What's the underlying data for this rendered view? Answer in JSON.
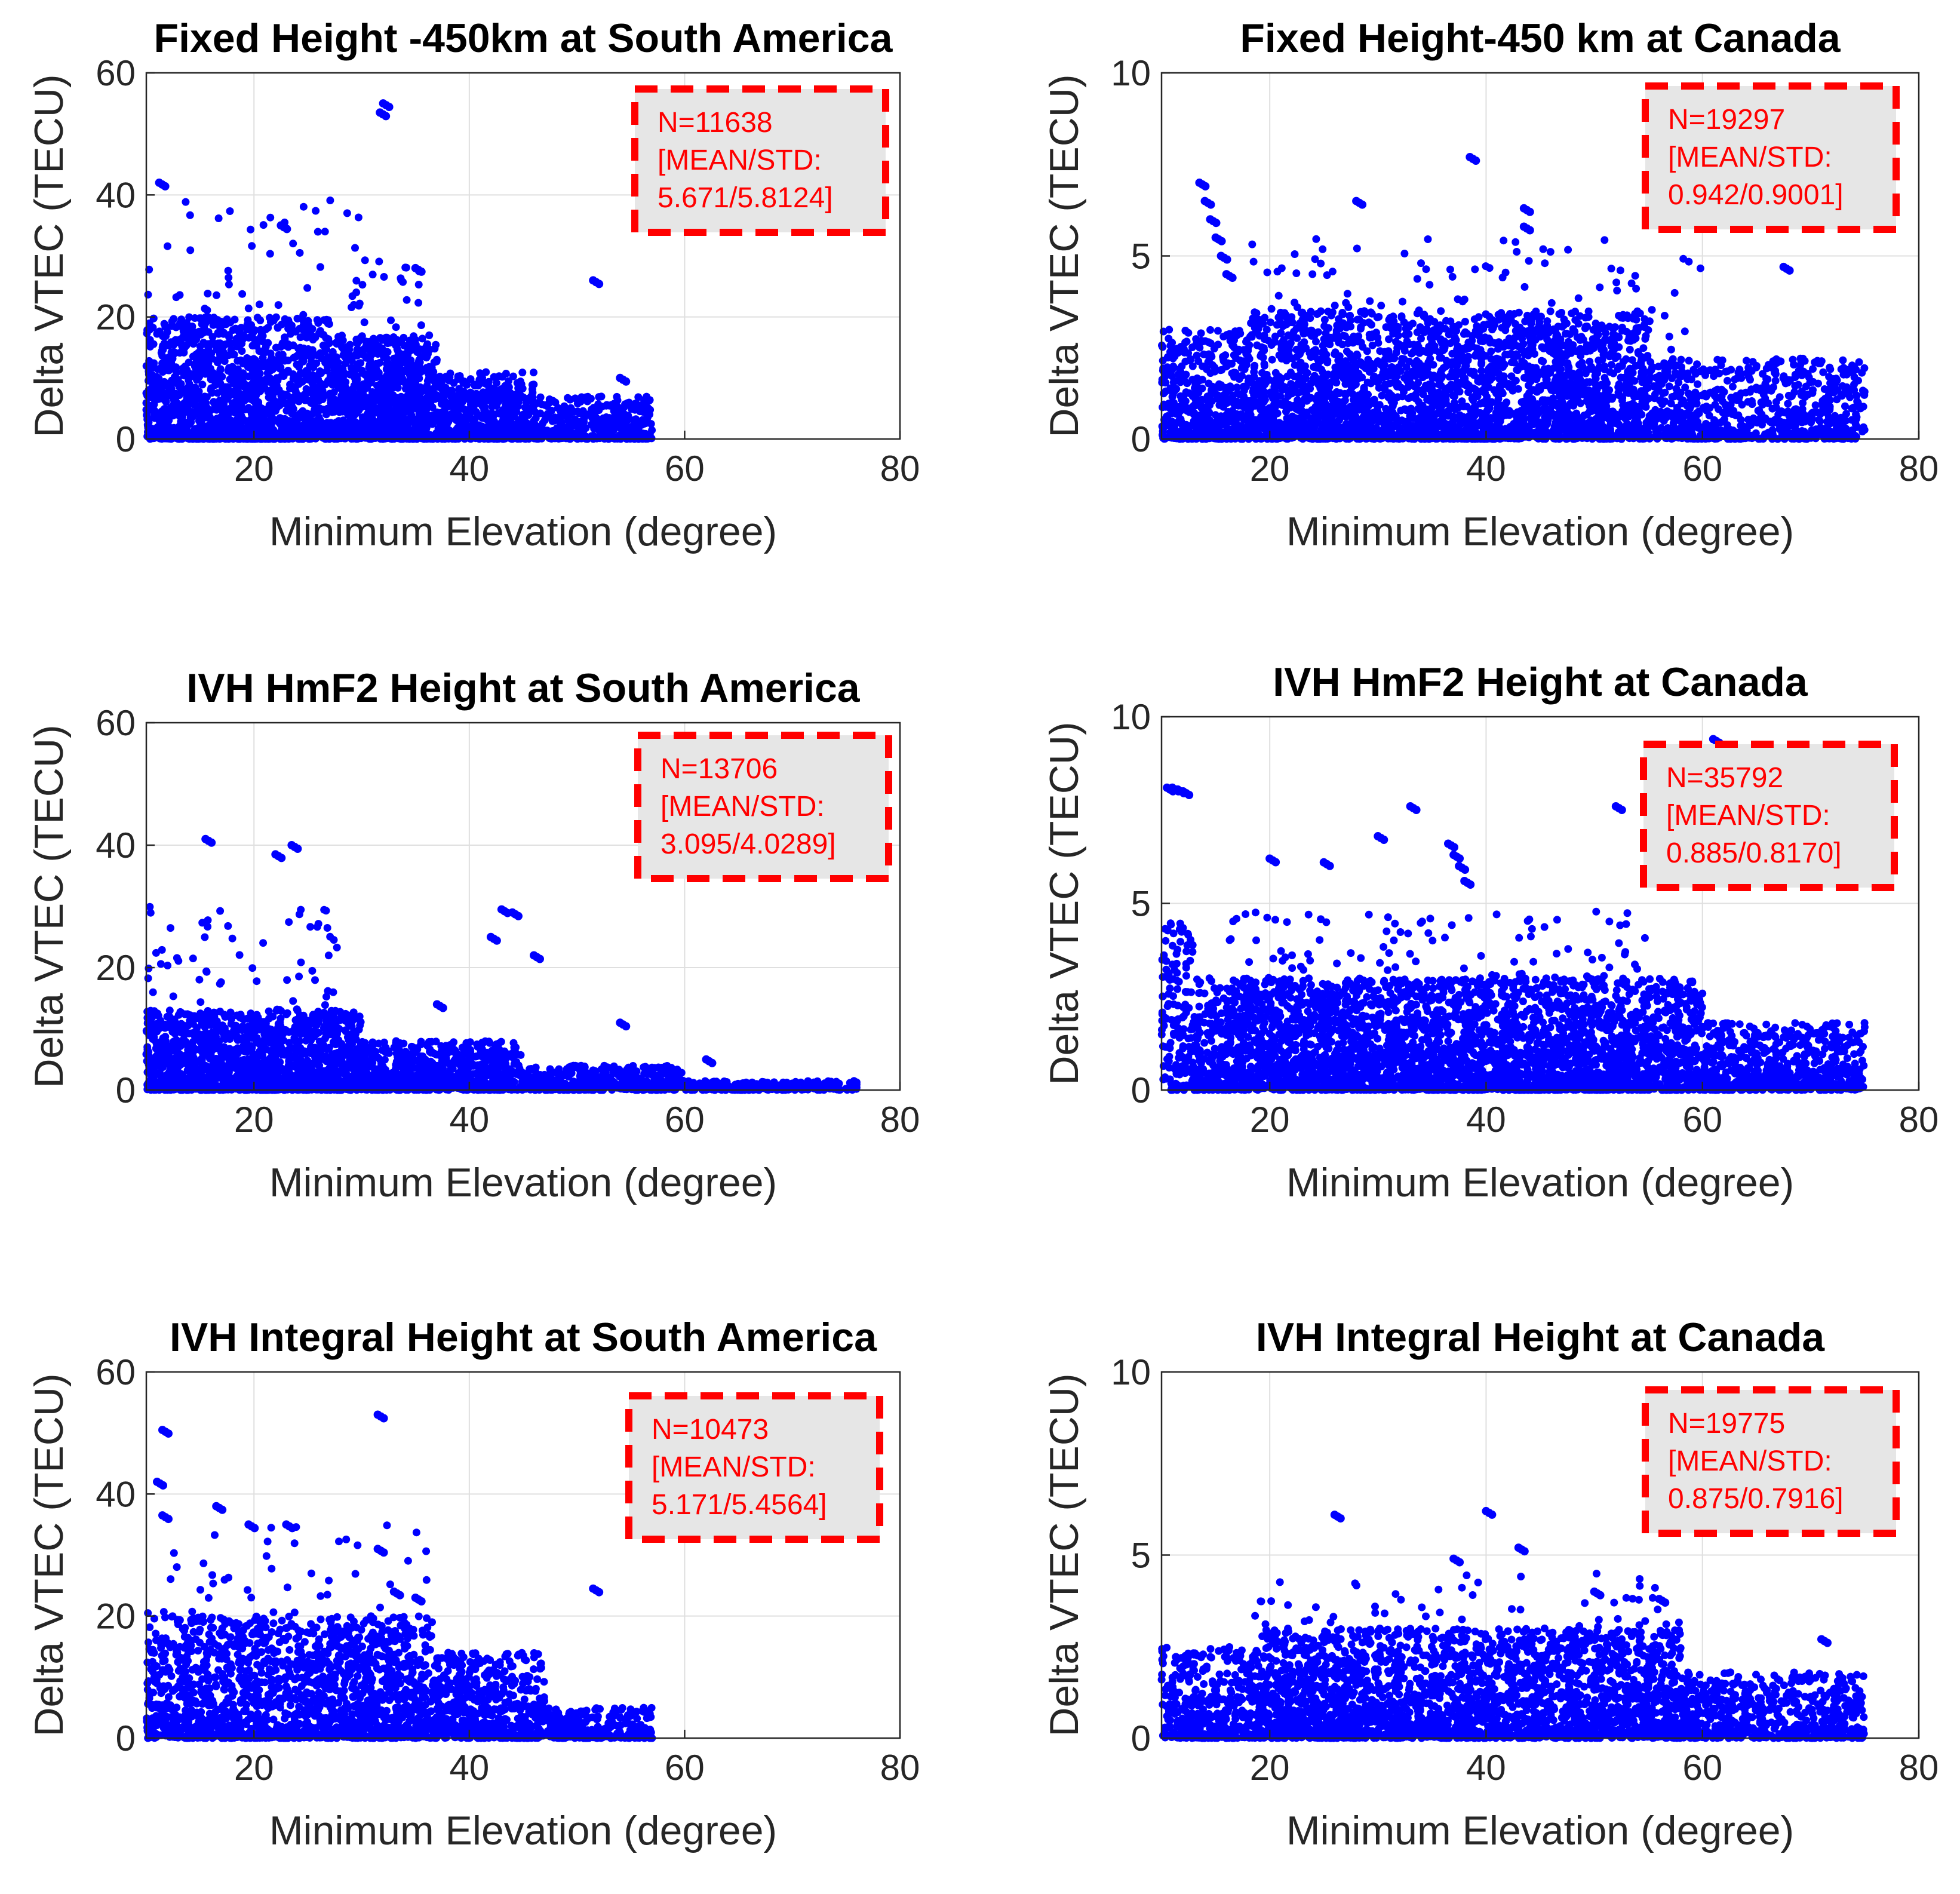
{
  "colors": {
    "marker": "#0000ff",
    "stats_border": "#ff0000",
    "stats_text": "#ff0000",
    "stats_fill": "#e6e6e6",
    "grid": "#dfdfdf",
    "axes": "#262626"
  },
  "chart_data": [
    {
      "id": "sa-fixed",
      "type": "scatter",
      "title": "Fixed Height -450km at South America",
      "xlabel": "Minimum Elevation (degree)",
      "ylabel": "Delta VTEC (TECU)",
      "xlim": [
        10,
        80
      ],
      "ylim": [
        0,
        60
      ],
      "xticks": [
        20,
        40,
        60,
        80
      ],
      "yticks": [
        0,
        20,
        40,
        60
      ],
      "grid": true,
      "stats": {
        "n": "N=11638",
        "label": "[MEAN/STD:",
        "values": "5.671/5.8124]"
      },
      "stats_position": "top-right",
      "series": [
        {
          "name": "Delta VTEC",
          "color": "#0000ff",
          "clusters": [
            {
              "x": [
                10,
                27
              ],
              "ytop": 20,
              "count": 1400
            },
            {
              "x": [
                27,
                37
              ],
              "ytop": 17,
              "count": 900
            },
            {
              "x": [
                37,
                46
              ],
              "ytop": 11,
              "count": 500
            },
            {
              "x": [
                46,
                57
              ],
              "ytop": 7,
              "count": 350
            },
            {
              "x": [
                10,
                30
              ],
              "ytop": 40,
              "count": 120
            },
            {
              "x": [
                29,
                36
              ],
              "ytop": 33,
              "count": 90
            }
          ],
          "points": [
            [
              32,
              55
            ],
            [
              31.7,
              53.5
            ],
            [
              11.2,
              42
            ],
            [
              51.5,
              26
            ],
            [
              54,
              10
            ],
            [
              22.5,
              35
            ],
            [
              35,
              28
            ]
          ]
        }
      ]
    },
    {
      "id": "ca-fixed",
      "type": "scatter",
      "title": "Fixed Height-450 km at Canada",
      "xlabel": "Minimum Elevation (degree)",
      "ylabel": "Delta VTEC (TECU)",
      "xlim": [
        10,
        80
      ],
      "ylim": [
        0,
        10
      ],
      "xticks": [
        20,
        40,
        60,
        80
      ],
      "yticks": [
        0,
        5,
        10
      ],
      "grid": true,
      "stats": {
        "n": "N=19297",
        "label": "[MEAN/STD:",
        "values": "0.942/0.9001]"
      },
      "stats_position": "top-right",
      "series": [
        {
          "name": "Delta VTEC",
          "color": "#0000ff",
          "clusters": [
            {
              "x": [
                10,
                18
              ],
              "ytop": 3,
              "count": 500
            },
            {
              "x": [
                18,
                55
              ],
              "ytop": 3.5,
              "count": 2600
            },
            {
              "x": [
                55,
                75
              ],
              "ytop": 2.2,
              "count": 700
            },
            {
              "x": [
                18,
                60
              ],
              "ytop": 5.5,
              "count": 300
            }
          ],
          "points": [
            [
              13.5,
              7
            ],
            [
              14,
              6.5
            ],
            [
              14.5,
              6
            ],
            [
              15,
              5.5
            ],
            [
              15.5,
              5
            ],
            [
              16,
              4.5
            ],
            [
              38.5,
              7.7
            ],
            [
              67.5,
              4.7
            ],
            [
              28,
              6.5
            ],
            [
              43.5,
              6.3
            ],
            [
              43.5,
              5.8
            ]
          ]
        }
      ]
    },
    {
      "id": "sa-hmf2",
      "type": "scatter",
      "title": "IVH HmF2 Height at South America",
      "xlabel": "Minimum Elevation (degree)",
      "ylabel": "Delta VTEC (TECU)",
      "xlim": [
        10,
        80
      ],
      "ylim": [
        0,
        60
      ],
      "xticks": [
        20,
        40,
        60,
        80
      ],
      "yticks": [
        0,
        20,
        40,
        60
      ],
      "grid": true,
      "stats": {
        "n": "N=13706",
        "label": "[MEAN/STD:",
        "values": "3.095/4.0289]"
      },
      "stats_position": "top-right",
      "series": [
        {
          "name": "Delta VTEC",
          "color": "#0000ff",
          "clusters": [
            {
              "x": [
                10,
                30
              ],
              "ytop": 13,
              "count": 1500
            },
            {
              "x": [
                30,
                45
              ],
              "ytop": 8,
              "count": 700
            },
            {
              "x": [
                45,
                60
              ],
              "ytop": 4,
              "count": 400
            },
            {
              "x": [
                60,
                76
              ],
              "ytop": 1.5,
              "count": 250
            },
            {
              "x": [
                10,
                28
              ],
              "ytop": 30,
              "count": 150
            }
          ],
          "points": [
            [
              15.5,
              41
            ],
            [
              22,
              38.5
            ],
            [
              23.5,
              40
            ],
            [
              43,
              29.5
            ],
            [
              44,
              29
            ],
            [
              42,
              25
            ],
            [
              46,
              22
            ],
            [
              37,
              14
            ],
            [
              54,
              11
            ],
            [
              62,
              5
            ]
          ]
        }
      ]
    },
    {
      "id": "ca-hmf2",
      "type": "scatter",
      "title": "IVH HmF2 Height at Canada",
      "xlabel": "Minimum Elevation (degree)",
      "ylabel": "Delta VTEC (TECU)",
      "xlim": [
        10,
        80
      ],
      "ylim": [
        0,
        10
      ],
      "xticks": [
        20,
        40,
        60,
        80
      ],
      "yticks": [
        0,
        5,
        10
      ],
      "grid": true,
      "stats": {
        "n": "N=35792",
        "label": "[MEAN/STD:",
        "values": "0.885/0.8170]"
      },
      "stats_position": "top-right",
      "series": [
        {
          "name": "Delta VTEC",
          "color": "#0000ff",
          "clusters": [
            {
              "x": [
                13,
                60
              ],
              "ytop": 3,
              "count": 3200
            },
            {
              "x": [
                60,
                75
              ],
              "ytop": 1.8,
              "count": 600
            },
            {
              "x": [
                10,
                13
              ],
              "ytop": 4.5,
              "count": 150
            },
            {
              "x": [
                15,
                55
              ],
              "ytop": 4.8,
              "count": 400
            }
          ],
          "points": [
            [
              10.5,
              8.1
            ],
            [
              11,
              8.1
            ],
            [
              11.5,
              8.05
            ],
            [
              12,
              8
            ],
            [
              61,
              9.4
            ],
            [
              52,
              7.6
            ],
            [
              33,
              7.6
            ],
            [
              37,
              6.3
            ],
            [
              36.5,
              6.6
            ],
            [
              37.5,
              6
            ],
            [
              38,
              5.6
            ],
            [
              30,
              6.8
            ],
            [
              25,
              6.1
            ],
            [
              20,
              6.2
            ]
          ]
        }
      ]
    },
    {
      "id": "sa-integral",
      "type": "scatter",
      "title": "IVH Integral Height at South America",
      "xlabel": "Minimum Elevation (degree)",
      "ylabel": "Delta VTEC (TECU)",
      "xlim": [
        10,
        80
      ],
      "ylim": [
        0,
        60
      ],
      "xticks": [
        20,
        40,
        60,
        80
      ],
      "yticks": [
        0,
        20,
        40,
        60
      ],
      "grid": true,
      "stats": {
        "n": "N=10473",
        "label": "[MEAN/STD:",
        "values": "5.171/5.4564]"
      },
      "stats_position": "top-right",
      "series": [
        {
          "name": "Delta VTEC",
          "color": "#0000ff",
          "clusters": [
            {
              "x": [
                10,
                37
              ],
              "ytop": 20,
              "count": 1600
            },
            {
              "x": [
                37,
                47
              ],
              "ytop": 14,
              "count": 500
            },
            {
              "x": [
                47,
                57
              ],
              "ytop": 5,
              "count": 250
            },
            {
              "x": [
                10,
                37
              ],
              "ytop": 35,
              "count": 150
            }
          ],
          "points": [
            [
              31.5,
              53
            ],
            [
              11.5,
              50.5
            ],
            [
              11,
              42
            ],
            [
              11.5,
              36.5
            ],
            [
              16.5,
              38
            ],
            [
              19.5,
              35
            ],
            [
              23,
              35
            ],
            [
              31.5,
              31
            ],
            [
              51.5,
              24.5
            ],
            [
              33,
              24
            ],
            [
              35,
              23
            ]
          ]
        }
      ]
    },
    {
      "id": "ca-integral",
      "type": "scatter",
      "title": "IVH Integral Height at Canada",
      "xlabel": "Minimum Elevation (degree)",
      "ylabel": "Delta VTEC (TECU)",
      "xlim": [
        10,
        80
      ],
      "ylim": [
        0,
        10
      ],
      "xticks": [
        20,
        40,
        60,
        80
      ],
      "yticks": [
        0,
        5,
        10
      ],
      "grid": true,
      "stats": {
        "n": "N=19775",
        "label": "[MEAN/STD:",
        "values": "0.875/0.7916]"
      },
      "stats_position": "top-right",
      "series": [
        {
          "name": "Delta VTEC",
          "color": "#0000ff",
          "clusters": [
            {
              "x": [
                10,
                19
              ],
              "ytop": 2.5,
              "count": 400
            },
            {
              "x": [
                19,
                58
              ],
              "ytop": 3,
              "count": 2300
            },
            {
              "x": [
                58,
                75
              ],
              "ytop": 1.8,
              "count": 600
            },
            {
              "x": [
                18,
                60
              ],
              "ytop": 4.5,
              "count": 250
            }
          ],
          "points": [
            [
              26,
              6.1
            ],
            [
              40,
              6.2
            ],
            [
              43,
              5.2
            ],
            [
              37,
              4.9
            ],
            [
              50,
              4
            ],
            [
              56,
              3.8
            ],
            [
              71,
              2.7
            ]
          ]
        }
      ]
    }
  ]
}
